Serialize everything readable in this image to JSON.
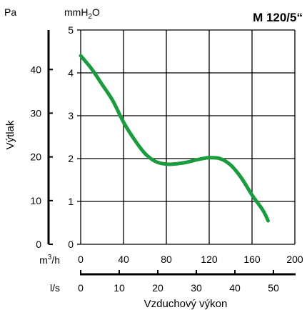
{
  "chart_data": {
    "type": "line",
    "title": "M 120/5“",
    "ylabel": "Výtlak",
    "xlabel": "Vzduchový výkon",
    "left_axis_unit": "Pa",
    "right_axis_unit": "mmH2O",
    "right_axis_unit_parts": {
      "base": "mmH",
      "sub": "2",
      "tail": "O"
    },
    "x_axis_top": {
      "unit": "m3/h",
      "unit_parts": {
        "base": "m",
        "sup": "3",
        "tail": "/h"
      },
      "range": [
        0,
        200
      ],
      "ticks": [
        0,
        40,
        80,
        120,
        160,
        200
      ],
      "tick_labels": [
        "0",
        "40",
        "80",
        "120",
        "160",
        "200"
      ]
    },
    "x_axis_bottom": {
      "unit": "l/s",
      "range": [
        0,
        55.56
      ],
      "ticks": [
        0,
        10,
        20,
        30,
        40,
        50
      ],
      "tick_labels": [
        "0",
        "10",
        "20",
        "30",
        "40",
        "50"
      ]
    },
    "y_axis_mmH2O": {
      "range": [
        0,
        5
      ],
      "ticks": [
        0,
        1,
        2,
        3,
        4,
        5
      ],
      "tick_labels": [
        "0",
        "1",
        "2",
        "3",
        "4",
        "5"
      ]
    },
    "y_axis_Pa": {
      "range": [
        0,
        49.03
      ],
      "ticks": [
        0,
        10,
        20,
        30,
        40
      ],
      "tick_labels": [
        "0",
        "10",
        "20",
        "30",
        "40"
      ]
    },
    "grid": true,
    "series": [
      {
        "color": "#1a9c3e",
        "x_unit": "m3/h",
        "y_unit": "mmH2O",
        "x": [
          0,
          10,
          20,
          30,
          40,
          50,
          60,
          70,
          80,
          90,
          100,
          110,
          120,
          130,
          140,
          150,
          160,
          170,
          175
        ],
        "y": [
          4.4,
          4.1,
          3.73,
          3.35,
          2.85,
          2.45,
          2.12,
          1.93,
          1.87,
          1.88,
          1.92,
          1.98,
          2.02,
          2.0,
          1.85,
          1.55,
          1.15,
          0.8,
          0.55
        ]
      }
    ]
  }
}
